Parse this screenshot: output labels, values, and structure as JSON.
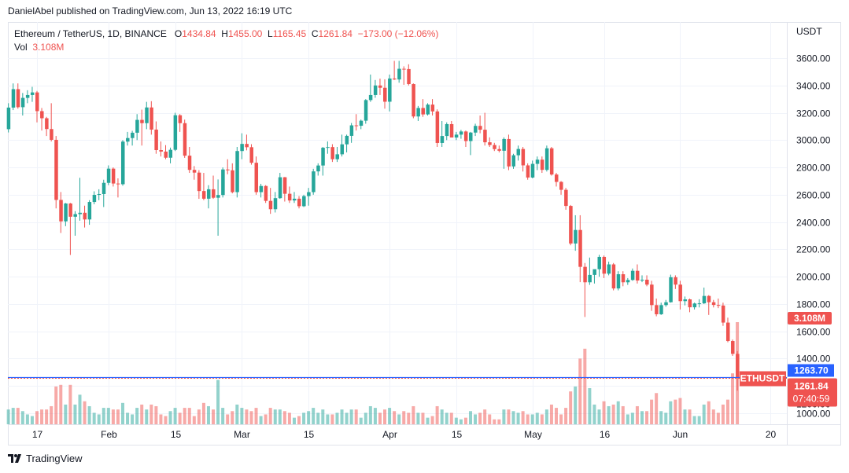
{
  "header": {
    "published": "DanielAbel published on TradingView.com, Jun 13, 2022 16:19 UTC"
  },
  "legend": {
    "symbol": "Ethereum / TetherUS, 1D, BINANCE",
    "o_label": "O",
    "o": "1434.84",
    "h_label": "H",
    "h": "1455.00",
    "l_label": "L",
    "l": "1165.45",
    "c_label": "C",
    "c": "1261.84",
    "change": "−173.00 (−12.06%)",
    "vol_label": "Vol",
    "vol": "3.108M"
  },
  "footer": {
    "brand": "TradingView"
  },
  "chart_data": {
    "type": "candlestick",
    "symbol": "ETHUSDT",
    "interval": "1D",
    "currency": "USDT",
    "colors": {
      "up": "#26a69a",
      "down": "#ef5350",
      "up_volume": "#26a69a80",
      "down_volume": "#ef535080",
      "bid_line": "#2962ff"
    },
    "ylim": [
      1000,
      3600
    ],
    "y_ticks": [
      "1000.00",
      "1200.00",
      "1400.00",
      "1600.00",
      "1800.00",
      "2000.00",
      "2200.00",
      "2400.00",
      "2600.00",
      "2800.00",
      "3000.00",
      "3200.00",
      "3400.00",
      "3600.00"
    ],
    "x_ticks": [
      {
        "label": "17",
        "date": "2022-01-17"
      },
      {
        "label": "Feb",
        "date": "2022-02-01"
      },
      {
        "label": "15",
        "date": "2022-02-15"
      },
      {
        "label": "Mar",
        "date": "2022-03-01"
      },
      {
        "label": "15",
        "date": "2022-03-15"
      },
      {
        "label": "Apr",
        "date": "2022-04-01"
      },
      {
        "label": "15",
        "date": "2022-04-15"
      },
      {
        "label": "May",
        "date": "2022-05-01"
      },
      {
        "label": "16",
        "date": "2022-05-16"
      },
      {
        "label": "Jun",
        "date": "2022-06-01"
      },
      {
        "label": "20",
        "date": "2022-06-20"
      }
    ],
    "grid": true,
    "labels": {
      "volume": "3.108M",
      "bid": "1263.70",
      "last_price": "1261.84",
      "countdown": "07:40:59",
      "symbol_tag": "ETHUSDT"
    },
    "bid_price": 1263.7,
    "last_price": 1261.84,
    "columns": [
      "date",
      "open",
      "high",
      "low",
      "close",
      "volume_M"
    ],
    "candles": [
      [
        "2022-01-11",
        3080,
        3270,
        3056,
        3238,
        0.45
      ],
      [
        "2022-01-12",
        3238,
        3415,
        3220,
        3373,
        0.5
      ],
      [
        "2022-01-13",
        3373,
        3415,
        3230,
        3241,
        0.5
      ],
      [
        "2022-01-14",
        3241,
        3345,
        3180,
        3309,
        0.4
      ],
      [
        "2022-01-15",
        3309,
        3365,
        3270,
        3330,
        0.3
      ],
      [
        "2022-01-16",
        3330,
        3390,
        3280,
        3349,
        0.25
      ],
      [
        "2022-01-17",
        3349,
        3360,
        3130,
        3212,
        0.4
      ],
      [
        "2022-01-18",
        3212,
        3235,
        3070,
        3160,
        0.45
      ],
      [
        "2022-01-19",
        3160,
        3170,
        3030,
        3081,
        0.45
      ],
      [
        "2022-01-20",
        3081,
        3270,
        2990,
        3002,
        0.55
      ],
      [
        "2022-01-21",
        3002,
        3030,
        2500,
        2562,
        1.15
      ],
      [
        "2022-01-22",
        2562,
        2620,
        2320,
        2405,
        1.2
      ],
      [
        "2022-01-23",
        2405,
        2540,
        2370,
        2536,
        0.6
      ],
      [
        "2022-01-24",
        2536,
        2540,
        2159,
        2439,
        1.2
      ],
      [
        "2022-01-25",
        2439,
        2480,
        2300,
        2458,
        0.6
      ],
      [
        "2022-01-26",
        2458,
        2724,
        2410,
        2468,
        0.9
      ],
      [
        "2022-01-27",
        2468,
        2520,
        2360,
        2419,
        0.7
      ],
      [
        "2022-01-28",
        2419,
        2560,
        2380,
        2547,
        0.55
      ],
      [
        "2022-01-29",
        2547,
        2625,
        2530,
        2599,
        0.35
      ],
      [
        "2022-01-30",
        2599,
        2640,
        2560,
        2605,
        0.3
      ],
      [
        "2022-01-31",
        2605,
        2710,
        2510,
        2687,
        0.5
      ],
      [
        "2022-02-01",
        2687,
        2815,
        2670,
        2791,
        0.5
      ],
      [
        "2022-02-02",
        2791,
        2800,
        2660,
        2682,
        0.45
      ],
      [
        "2022-02-03",
        2682,
        2720,
        2580,
        2677,
        0.45
      ],
      [
        "2022-02-04",
        2677,
        3000,
        2666,
        2989,
        0.65
      ],
      [
        "2022-02-05",
        2989,
        3060,
        2960,
        3015,
        0.35
      ],
      [
        "2022-02-06",
        3015,
        3068,
        2960,
        3054,
        0.3
      ],
      [
        "2022-02-07",
        3054,
        3190,
        3000,
        3148,
        0.5
      ],
      [
        "2022-02-08",
        3148,
        3223,
        2960,
        3124,
        0.6
      ],
      [
        "2022-02-09",
        3124,
        3280,
        3080,
        3239,
        0.45
      ],
      [
        "2022-02-10",
        3239,
        3285,
        3040,
        3077,
        0.6
      ],
      [
        "2022-02-11",
        3077,
        3137,
        2900,
        2927,
        0.55
      ],
      [
        "2022-02-12",
        2927,
        2990,
        2880,
        2916,
        0.3
      ],
      [
        "2022-02-13",
        2916,
        2963,
        2860,
        2871,
        0.25
      ],
      [
        "2022-02-14",
        2871,
        2945,
        2830,
        2929,
        0.4
      ],
      [
        "2022-02-15",
        2929,
        3200,
        2920,
        3182,
        0.5
      ],
      [
        "2022-02-16",
        3182,
        3190,
        3060,
        3124,
        0.35
      ],
      [
        "2022-02-17",
        3124,
        3150,
        2870,
        2886,
        0.5
      ],
      [
        "2022-02-18",
        2886,
        2950,
        2760,
        2782,
        0.5
      ],
      [
        "2022-02-19",
        2782,
        2810,
        2710,
        2762,
        0.25
      ],
      [
        "2022-02-20",
        2762,
        2780,
        2570,
        2627,
        0.45
      ],
      [
        "2022-02-21",
        2627,
        2760,
        2560,
        2571,
        0.65
      ],
      [
        "2022-02-22",
        2571,
        2670,
        2500,
        2640,
        0.55
      ],
      [
        "2022-02-23",
        2640,
        2740,
        2570,
        2578,
        0.45
      ],
      [
        "2022-02-24",
        2578,
        2712,
        2300,
        2598,
        1.35
      ],
      [
        "2022-02-25",
        2598,
        2800,
        2580,
        2785,
        0.5
      ],
      [
        "2022-02-26",
        2785,
        2860,
        2750,
        2779,
        0.3
      ],
      [
        "2022-02-27",
        2779,
        2830,
        2610,
        2619,
        0.4
      ],
      [
        "2022-02-28",
        2619,
        2950,
        2580,
        2920,
        0.6
      ],
      [
        "2022-03-01",
        2920,
        3050,
        2860,
        2972,
        0.5
      ],
      [
        "2022-03-02",
        2972,
        3040,
        2925,
        2948,
        0.45
      ],
      [
        "2022-03-03",
        2948,
        2970,
        2820,
        2834,
        0.4
      ],
      [
        "2022-03-04",
        2834,
        2880,
        2600,
        2619,
        0.5
      ],
      [
        "2022-03-05",
        2619,
        2680,
        2580,
        2664,
        0.25
      ],
      [
        "2022-03-06",
        2664,
        2670,
        2540,
        2555,
        0.3
      ],
      [
        "2022-03-07",
        2555,
        2650,
        2460,
        2494,
        0.5
      ],
      [
        "2022-03-08",
        2494,
        2620,
        2470,
        2575,
        0.45
      ],
      [
        "2022-03-09",
        2575,
        2760,
        2570,
        2728,
        0.45
      ],
      [
        "2022-03-10",
        2728,
        2730,
        2550,
        2607,
        0.4
      ],
      [
        "2022-03-11",
        2607,
        2660,
        2540,
        2558,
        0.35
      ],
      [
        "2022-03-12",
        2558,
        2620,
        2540,
        2571,
        0.2
      ],
      [
        "2022-03-13",
        2571,
        2590,
        2500,
        2516,
        0.25
      ],
      [
        "2022-03-14",
        2516,
        2600,
        2510,
        2590,
        0.35
      ],
      [
        "2022-03-15",
        2590,
        2650,
        2520,
        2619,
        0.4
      ],
      [
        "2022-03-16",
        2619,
        2790,
        2600,
        2771,
        0.5
      ],
      [
        "2022-03-17",
        2771,
        2830,
        2740,
        2814,
        0.35
      ],
      [
        "2022-03-18",
        2814,
        2950,
        2740,
        2944,
        0.45
      ],
      [
        "2022-03-19",
        2944,
        2990,
        2900,
        2949,
        0.3
      ],
      [
        "2022-03-20",
        2949,
        2970,
        2840,
        2860,
        0.3
      ],
      [
        "2022-03-21",
        2860,
        2950,
        2840,
        2896,
        0.35
      ],
      [
        "2022-03-22",
        2896,
        3040,
        2880,
        2969,
        0.45
      ],
      [
        "2022-03-23",
        2969,
        3040,
        2910,
        3031,
        0.35
      ],
      [
        "2022-03-24",
        3031,
        3125,
        2980,
        3108,
        0.45
      ],
      [
        "2022-03-25",
        3108,
        3190,
        3070,
        3105,
        0.45
      ],
      [
        "2022-03-26",
        3105,
        3150,
        3080,
        3142,
        0.2
      ],
      [
        "2022-03-27",
        3142,
        3300,
        3120,
        3293,
        0.35
      ],
      [
        "2022-03-28",
        3293,
        3480,
        3280,
        3330,
        0.55
      ],
      [
        "2022-03-29",
        3330,
        3440,
        3310,
        3400,
        0.5
      ],
      [
        "2022-03-30",
        3400,
        3450,
        3330,
        3383,
        0.35
      ],
      [
        "2022-03-31",
        3383,
        3445,
        3230,
        3281,
        0.45
      ],
      [
        "2022-04-01",
        3281,
        3480,
        3210,
        3451,
        0.5
      ],
      [
        "2022-04-02",
        3451,
        3580,
        3440,
        3444,
        0.4
      ],
      [
        "2022-04-03",
        3444,
        3580,
        3420,
        3522,
        0.3
      ],
      [
        "2022-04-04",
        3522,
        3540,
        3405,
        3520,
        0.4
      ],
      [
        "2022-04-05",
        3520,
        3555,
        3400,
        3410,
        0.35
      ],
      [
        "2022-04-06",
        3410,
        3415,
        3160,
        3173,
        0.55
      ],
      [
        "2022-04-07",
        3173,
        3250,
        3140,
        3235,
        0.35
      ],
      [
        "2022-04-08",
        3235,
        3300,
        3170,
        3188,
        0.35
      ],
      [
        "2022-04-09",
        3188,
        3270,
        3180,
        3260,
        0.2
      ],
      [
        "2022-04-10",
        3260,
        3300,
        3180,
        3210,
        0.25
      ],
      [
        "2022-04-11",
        3210,
        3225,
        2950,
        2979,
        0.55
      ],
      [
        "2022-04-12",
        2979,
        3140,
        2950,
        3030,
        0.45
      ],
      [
        "2022-04-13",
        3030,
        3130,
        3000,
        3117,
        0.35
      ],
      [
        "2022-04-14",
        3117,
        3140,
        3020,
        3019,
        0.35
      ],
      [
        "2022-04-15",
        3019,
        3060,
        3000,
        3040,
        0.2
      ],
      [
        "2022-04-16",
        3040,
        3075,
        3010,
        3063,
        0.15
      ],
      [
        "2022-04-17",
        3063,
        3070,
        2950,
        2993,
        0.2
      ],
      [
        "2022-04-18",
        2993,
        3060,
        2890,
        3055,
        0.4
      ],
      [
        "2022-04-19",
        3055,
        3120,
        3030,
        3104,
        0.3
      ],
      [
        "2022-04-20",
        3104,
        3180,
        3050,
        3076,
        0.35
      ],
      [
        "2022-04-21",
        3076,
        3200,
        2960,
        2984,
        0.45
      ],
      [
        "2022-04-22",
        2984,
        3020,
        2950,
        2964,
        0.3
      ],
      [
        "2022-04-23",
        2964,
        2980,
        2920,
        2934,
        0.15
      ],
      [
        "2022-04-24",
        2934,
        2960,
        2910,
        2922,
        0.15
      ],
      [
        "2022-04-25",
        2922,
        3020,
        2790,
        3008,
        0.45
      ],
      [
        "2022-04-26",
        3008,
        3040,
        2780,
        2807,
        0.45
      ],
      [
        "2022-04-27",
        2807,
        2900,
        2790,
        2889,
        0.4
      ],
      [
        "2022-04-28",
        2889,
        2960,
        2850,
        2935,
        0.35
      ],
      [
        "2022-04-29",
        2935,
        2950,
        2770,
        2815,
        0.4
      ],
      [
        "2022-04-30",
        2815,
        2830,
        2710,
        2726,
        0.3
      ],
      [
        "2022-05-01",
        2726,
        2850,
        2720,
        2826,
        0.3
      ],
      [
        "2022-05-02",
        2826,
        2880,
        2780,
        2857,
        0.35
      ],
      [
        "2022-05-03",
        2857,
        2880,
        2760,
        2782,
        0.3
      ],
      [
        "2022-05-04",
        2782,
        2960,
        2770,
        2940,
        0.45
      ],
      [
        "2022-05-05",
        2940,
        2950,
        2740,
        2748,
        0.6
      ],
      [
        "2022-05-06",
        2748,
        2760,
        2660,
        2694,
        0.5
      ],
      [
        "2022-05-07",
        2694,
        2700,
        2600,
        2636,
        0.3
      ],
      [
        "2022-05-08",
        2636,
        2650,
        2490,
        2518,
        0.5
      ],
      [
        "2022-05-09",
        2518,
        2525,
        2230,
        2243,
        1.0
      ],
      [
        "2022-05-10",
        2243,
        2450,
        2190,
        2342,
        1.15
      ],
      [
        "2022-05-11",
        2342,
        2450,
        1960,
        2072,
        2.0
      ],
      [
        "2022-05-12",
        2072,
        2100,
        1705,
        1959,
        2.3
      ],
      [
        "2022-05-13",
        1959,
        2140,
        1940,
        2013,
        1.1
      ],
      [
        "2022-05-14",
        2013,
        2050,
        1950,
        2055,
        0.6
      ],
      [
        "2022-05-15",
        2055,
        2160,
        2000,
        2145,
        0.45
      ],
      [
        "2022-05-16",
        2145,
        2155,
        1990,
        2022,
        0.7
      ],
      [
        "2022-05-17",
        2022,
        2110,
        2010,
        2090,
        0.55
      ],
      [
        "2022-05-18",
        2090,
        2100,
        1900,
        1914,
        0.6
      ],
      [
        "2022-05-19",
        1914,
        2040,
        1900,
        2018,
        0.7
      ],
      [
        "2022-05-20",
        2018,
        2040,
        1930,
        1959,
        0.55
      ],
      [
        "2022-05-21",
        1959,
        1990,
        1940,
        1976,
        0.3
      ],
      [
        "2022-05-22",
        1976,
        2060,
        1970,
        2043,
        0.35
      ],
      [
        "2022-05-23",
        2043,
        2090,
        1950,
        1972,
        0.55
      ],
      [
        "2022-05-24",
        1972,
        2010,
        1960,
        1978,
        0.4
      ],
      [
        "2022-05-25",
        1978,
        2010,
        1930,
        1942,
        0.4
      ],
      [
        "2022-05-26",
        1942,
        1970,
        1750,
        1792,
        0.75
      ],
      [
        "2022-05-27",
        1792,
        1840,
        1710,
        1725,
        0.95
      ],
      [
        "2022-05-28",
        1725,
        1810,
        1720,
        1792,
        0.4
      ],
      [
        "2022-05-29",
        1792,
        1830,
        1780,
        1813,
        0.35
      ],
      [
        "2022-05-30",
        1813,
        2015,
        1810,
        1996,
        0.7
      ],
      [
        "2022-05-31",
        1996,
        2010,
        1910,
        1942,
        0.75
      ],
      [
        "2022-06-01",
        1942,
        1970,
        1760,
        1821,
        0.8
      ],
      [
        "2022-06-02",
        1821,
        1855,
        1790,
        1834,
        0.45
      ],
      [
        "2022-06-03",
        1834,
        1840,
        1740,
        1776,
        0.45
      ],
      [
        "2022-06-04",
        1776,
        1810,
        1760,
        1804,
        0.25
      ],
      [
        "2022-06-05",
        1804,
        1835,
        1775,
        1805,
        0.25
      ],
      [
        "2022-06-06",
        1805,
        1920,
        1800,
        1859,
        0.6
      ],
      [
        "2022-06-07",
        1859,
        1865,
        1720,
        1813,
        0.7
      ],
      [
        "2022-06-08",
        1813,
        1830,
        1775,
        1793,
        0.45
      ],
      [
        "2022-06-09",
        1793,
        1840,
        1770,
        1789,
        0.35
      ],
      [
        "2022-06-10",
        1789,
        1810,
        1640,
        1664,
        0.6
      ],
      [
        "2022-06-11",
        1664,
        1700,
        1520,
        1529,
        0.75
      ],
      [
        "2022-06-12",
        1529,
        1540,
        1420,
        1435,
        1.55
      ],
      [
        "2022-06-13",
        1434.84,
        1455,
        1165.45,
        1261.84,
        3.108
      ]
    ]
  }
}
